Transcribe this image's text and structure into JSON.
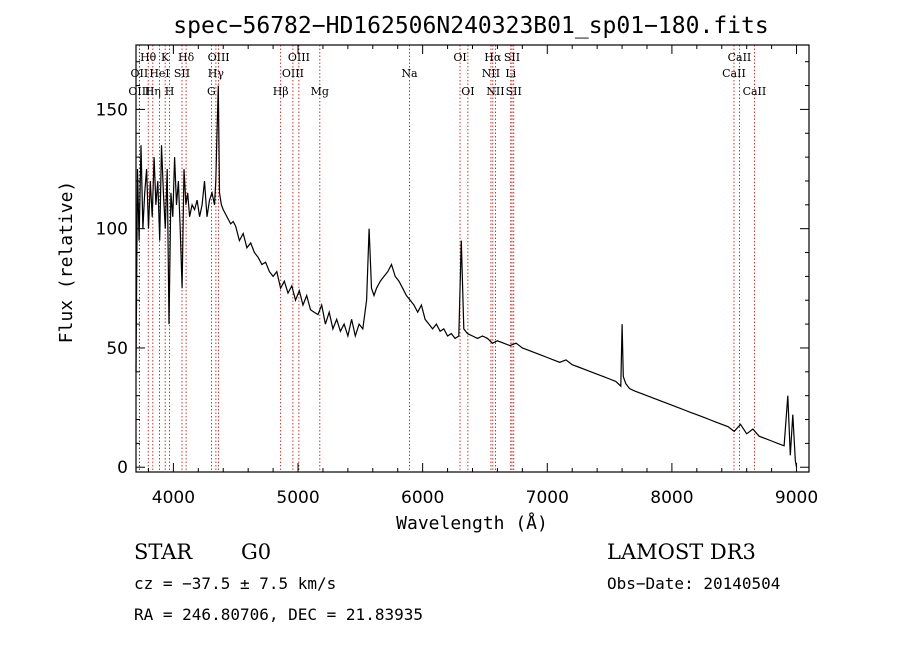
{
  "chart_data": {
    "type": "line",
    "title": "spec−56782−HD162506N240323B01_sp01−180.fits",
    "xlabel": "Wavelength (Å)",
    "ylabel": "Flux (relative)",
    "xlim": [
      3700,
      9100
    ],
    "ylim": [
      -2,
      177
    ],
    "x_ticks": [
      4000,
      5000,
      6000,
      7000,
      8000,
      9000
    ],
    "y_ticks": [
      0,
      50,
      100,
      150
    ],
    "grid": false,
    "series": [
      {
        "name": "spectrum",
        "x": [
          3700,
          3712,
          3725,
          3740,
          3755,
          3770,
          3785,
          3800,
          3815,
          3830,
          3845,
          3860,
          3875,
          3890,
          3905,
          3920,
          3935,
          3950,
          3965,
          3980,
          3995,
          4010,
          4025,
          4040,
          4055,
          4070,
          4085,
          4100,
          4115,
          4130,
          4150,
          4170,
          4190,
          4210,
          4230,
          4250,
          4270,
          4290,
          4310,
          4330,
          4340,
          4350,
          4360,
          4370,
          4385,
          4400,
          4420,
          4440,
          4460,
          4480,
          4500,
          4530,
          4560,
          4590,
          4620,
          4650,
          4680,
          4710,
          4740,
          4770,
          4800,
          4830,
          4860,
          4890,
          4920,
          4950,
          4980,
          5010,
          5040,
          5070,
          5100,
          5130,
          5160,
          5190,
          5220,
          5250,
          5280,
          5310,
          5340,
          5370,
          5400,
          5430,
          5460,
          5490,
          5520,
          5550,
          5570,
          5590,
          5610,
          5630,
          5660,
          5690,
          5720,
          5750,
          5780,
          5810,
          5840,
          5870,
          5900,
          5930,
          5960,
          5990,
          6020,
          6050,
          6080,
          6110,
          6140,
          6170,
          6200,
          6230,
          6260,
          6290,
          6310,
          6330,
          6360,
          6400,
          6440,
          6480,
          6520,
          6560,
          6600,
          6650,
          6700,
          6750,
          6800,
          6850,
          6900,
          6950,
          7000,
          7050,
          7100,
          7150,
          7200,
          7250,
          7300,
          7350,
          7400,
          7450,
          7500,
          7550,
          7590,
          7600,
          7610,
          7630,
          7660,
          7700,
          7750,
          7800,
          7850,
          7900,
          7950,
          8000,
          8050,
          8100,
          8150,
          8200,
          8250,
          8300,
          8350,
          8400,
          8450,
          8500,
          8550,
          8600,
          8650,
          8700,
          8750,
          8800,
          8850,
          8900,
          8930,
          8950,
          8970,
          8990,
          9000
        ],
        "y": [
          40,
          125,
          95,
          135,
          100,
          115,
          125,
          100,
          120,
          105,
          130,
          110,
          120,
          95,
          135,
          115,
          100,
          125,
          60,
          115,
          105,
          130,
          110,
          120,
          100,
          75,
          125,
          110,
          115,
          105,
          110,
          108,
          112,
          105,
          110,
          120,
          105,
          112,
          115,
          110,
          120,
          140,
          160,
          115,
          110,
          108,
          106,
          104,
          102,
          103,
          101,
          95,
          98,
          92,
          94,
          90,
          88,
          85,
          86,
          82,
          80,
          82,
          75,
          78,
          73,
          76,
          70,
          74,
          68,
          72,
          66,
          65,
          64,
          68,
          60,
          65,
          58,
          62,
          57,
          60,
          55,
          62,
          55,
          60,
          58,
          70,
          100,
          75,
          72,
          75,
          78,
          80,
          82,
          85,
          80,
          78,
          75,
          72,
          70,
          68,
          65,
          68,
          62,
          60,
          58,
          60,
          57,
          58,
          55,
          56,
          54,
          55,
          95,
          58,
          56,
          55,
          54,
          55,
          54,
          52,
          53,
          52,
          51,
          52,
          50,
          49,
          48,
          47,
          46,
          45,
          44,
          45,
          43,
          42,
          41,
          40,
          39,
          38,
          37,
          36,
          34,
          60,
          38,
          35,
          33,
          32,
          31,
          30,
          29,
          28,
          27,
          26,
          25,
          24,
          23,
          22,
          21,
          20,
          19,
          18,
          17,
          15,
          18,
          14,
          16,
          13,
          12,
          11,
          10,
          9,
          30,
          5,
          22,
          3,
          0
        ]
      }
    ],
    "line_markers": [
      {
        "label": "Hθ",
        "x": 3798,
        "row": 1
      },
      {
        "label": "OII",
        "x": 3727,
        "row": 2
      },
      {
        "label": "OIII",
        "x": 3727,
        "row": 3
      },
      {
        "label": "K",
        "x": 3934,
        "row": 1
      },
      {
        "label": "HeI",
        "x": 3889,
        "row": 2
      },
      {
        "label": "Hη",
        "x": 3835,
        "row": 3
      },
      {
        "label": "Hδ",
        "x": 4102,
        "row": 1
      },
      {
        "label": "SII",
        "x": 4069,
        "row": 2
      },
      {
        "label": "H",
        "x": 3969,
        "row": 3
      },
      {
        "label": "OIII",
        "x": 4363,
        "row": 1
      },
      {
        "label": "Hγ",
        "x": 4341,
        "row": 2
      },
      {
        "label": "G",
        "x": 4305,
        "row": 3
      },
      {
        "label": "OIII",
        "x": 5007,
        "row": 1
      },
      {
        "label": "OIII",
        "x": 4959,
        "row": 2
      },
      {
        "label": "Hβ",
        "x": 4861,
        "row": 3
      },
      {
        "label": "Mg",
        "x": 5175,
        "row": 3
      },
      {
        "label": "Na",
        "x": 5894,
        "row": 2
      },
      {
        "label": "OI",
        "x": 6300,
        "row": 1
      },
      {
        "label": "OI",
        "x": 6363,
        "row": 3
      },
      {
        "label": "Hα",
        "x": 6563,
        "row": 1
      },
      {
        "label": "NII",
        "x": 6548,
        "row": 2
      },
      {
        "label": "NII",
        "x": 6584,
        "row": 3
      },
      {
        "label": "SII",
        "x": 6717,
        "row": 1
      },
      {
        "label": "Li",
        "x": 6707,
        "row": 2
      },
      {
        "label": "SII",
        "x": 6731,
        "row": 3
      },
      {
        "label": "CaII",
        "x": 8542,
        "row": 1
      },
      {
        "label": "CaII",
        "x": 8498,
        "row": 2
      },
      {
        "label": "CaII",
        "x": 8662,
        "row": 3
      }
    ]
  },
  "info": {
    "object_class": "STAR",
    "subclass": "G0",
    "survey": "LAMOST DR3",
    "redshift": "cz = −37.5 ± 7.5 km/s",
    "obs_date": "Obs−Date: 20140504",
    "coords": "RA = 246.80706, DEC =  21.83935"
  },
  "colors": {
    "axis": "#000000",
    "spectrum": "#000000",
    "marker": "#c00000"
  }
}
